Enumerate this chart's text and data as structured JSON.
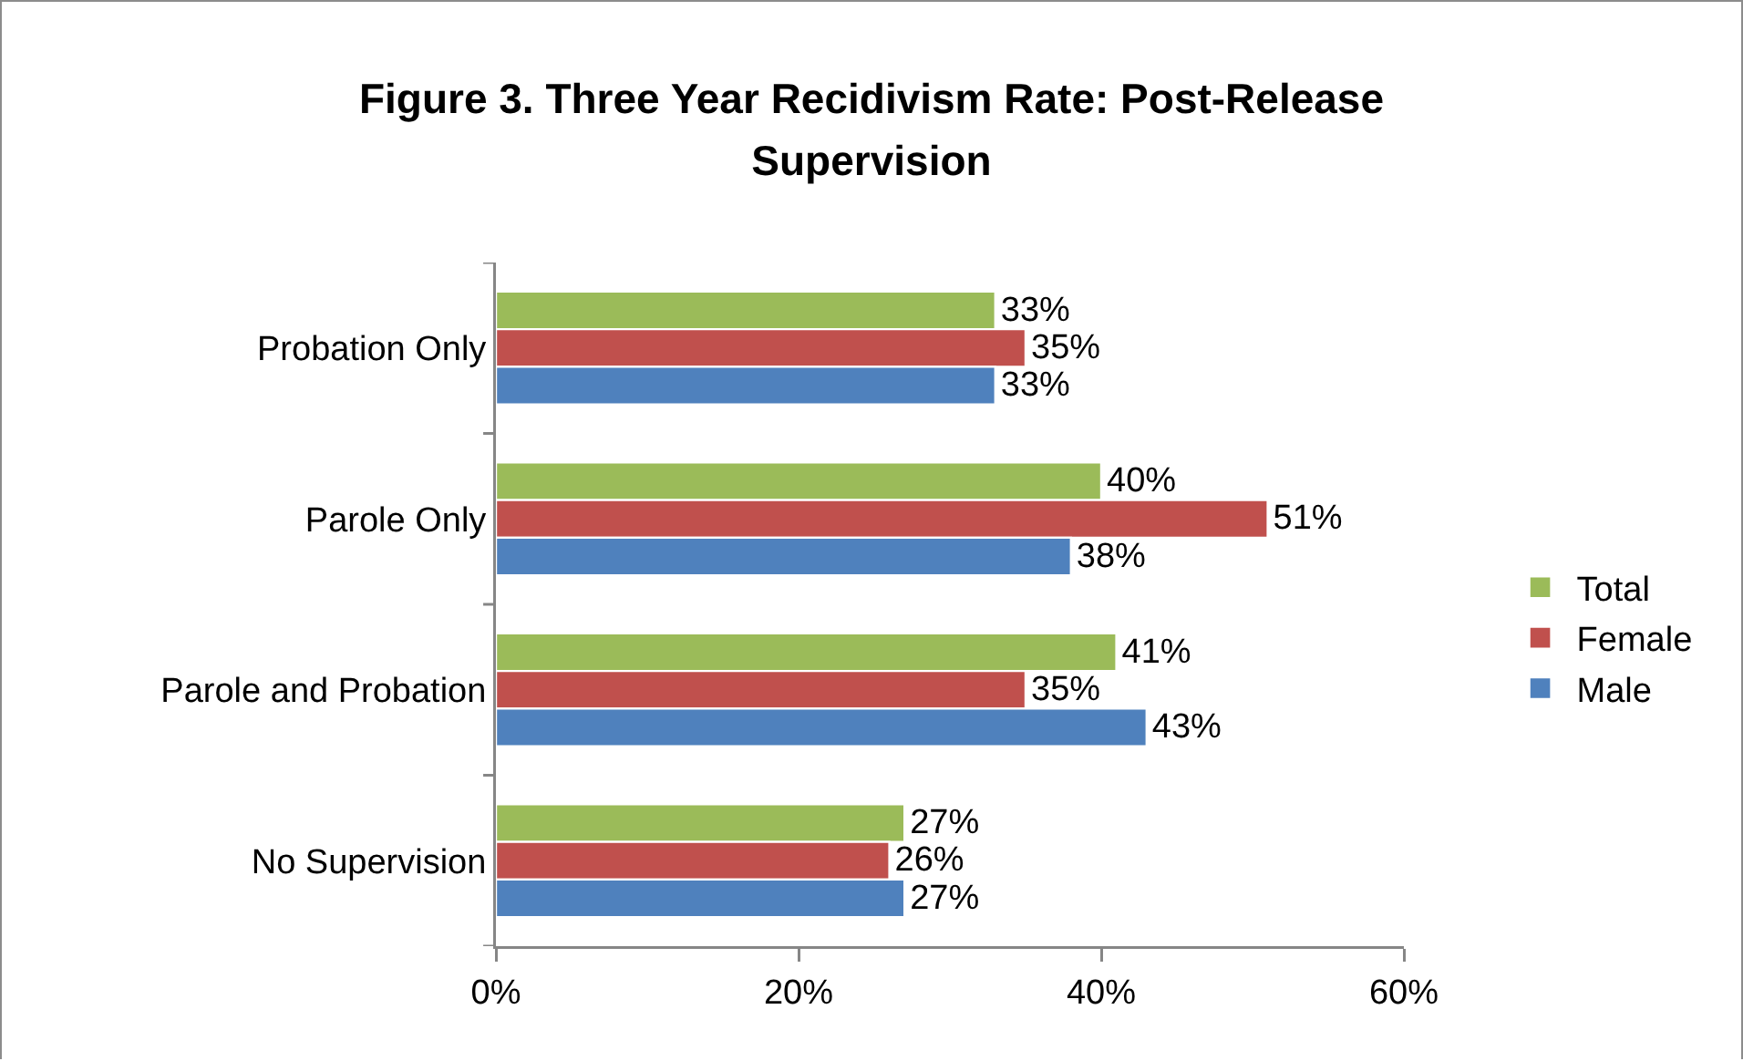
{
  "chart_data": {
    "type": "bar",
    "orientation": "horizontal",
    "title": "Figure 3. Three Year Recidivism Rate: Post-Release Supervision",
    "categories": [
      "Probation Only",
      "Parole Only",
      "Parole and Probation",
      "No Supervision"
    ],
    "series": [
      {
        "name": "Total",
        "color": "#9bbb59",
        "values": [
          33,
          40,
          41,
          27
        ],
        "value_labels": [
          "33%",
          "40%",
          "41%",
          "27%"
        ]
      },
      {
        "name": "Female",
        "color": "#c0504d",
        "values": [
          35,
          51,
          35,
          26
        ],
        "value_labels": [
          "35%",
          "51%",
          "35%",
          "26%"
        ]
      },
      {
        "name": "Male",
        "color": "#4f81bd",
        "values": [
          33,
          38,
          43,
          27
        ],
        "value_labels": [
          "33%",
          "38%",
          "43%",
          "27%"
        ]
      }
    ],
    "xlim": [
      0,
      60
    ],
    "xticks": [
      {
        "value": 0,
        "label": "0%"
      },
      {
        "value": 20,
        "label": "20%"
      },
      {
        "value": 40,
        "label": "40%"
      },
      {
        "value": 60,
        "label": "60%"
      }
    ],
    "grid": false,
    "legend": "right"
  }
}
